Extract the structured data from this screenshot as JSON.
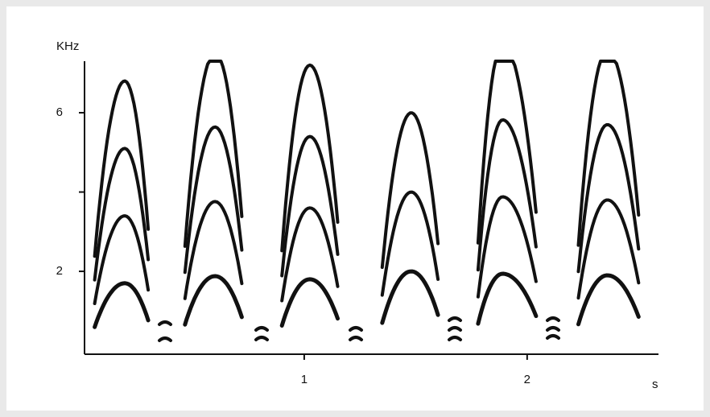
{
  "chart_data": {
    "type": "spectrogram",
    "y_label": "KHz",
    "x_label": "s",
    "xlim": [
      0,
      2.6
    ],
    "ylim": [
      -0.1,
      7.3
    ],
    "xticks": [
      1,
      2
    ],
    "yticks": [
      2,
      6
    ],
    "y_unlabeled_ticks": [
      4
    ],
    "color": "#111111",
    "calls": [
      {
        "start": 0.06,
        "peak_time": 0.195,
        "end": 0.3,
        "f0": 1.7,
        "harmonics": 4
      },
      {
        "start": 0.465,
        "peak_time": 0.6,
        "end": 0.72,
        "f0": 1.88,
        "harmonics": 4
      },
      {
        "start": 0.9,
        "peak_time": 1.025,
        "end": 1.15,
        "f0": 1.8,
        "harmonics": 4
      },
      {
        "start": 1.35,
        "peak_time": 1.48,
        "end": 1.6,
        "f0": 2.0,
        "harmonics": 3
      },
      {
        "start": 1.78,
        "peak_time": 1.89,
        "end": 2.04,
        "f0": 1.94,
        "harmonics": 4
      },
      {
        "start": 2.23,
        "peak_time": 2.36,
        "end": 2.5,
        "f0": 1.9,
        "harmonics": 4
      }
    ]
  }
}
